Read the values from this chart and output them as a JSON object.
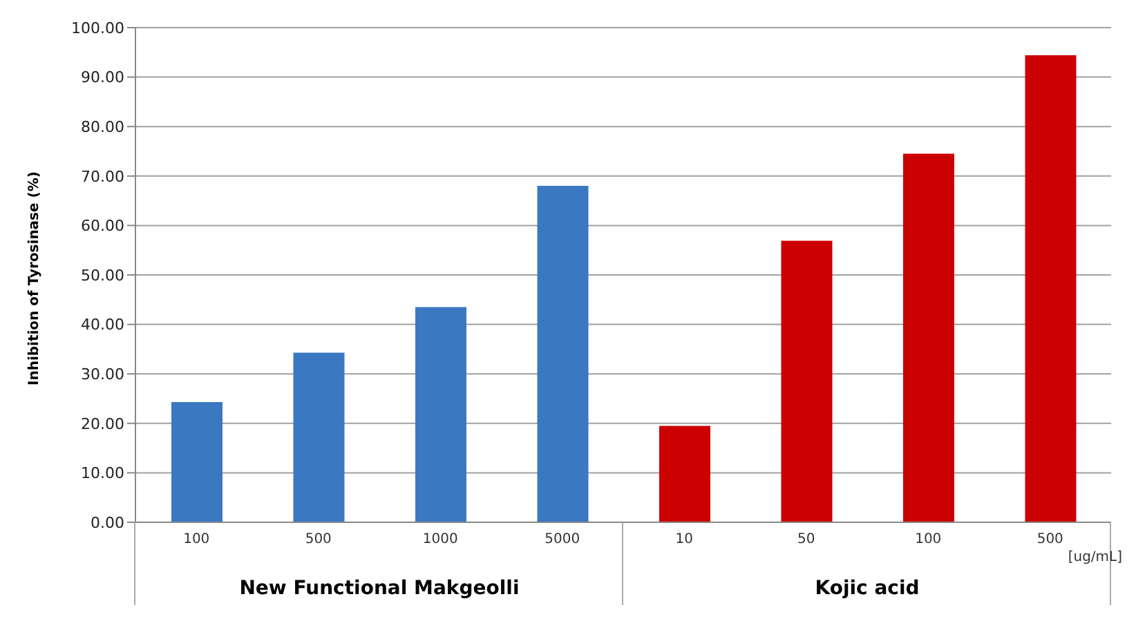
{
  "chart_data": {
    "type": "bar",
    "ylabel": "Inhibition of Tyrosinase (%)",
    "categories": [
      "100",
      "500",
      "1000",
      "5000",
      "10",
      "50",
      "100",
      "500"
    ],
    "values": [
      24.3,
      34.3,
      43.5,
      68.0,
      19.5,
      56.9,
      74.5,
      94.4
    ],
    "colors": [
      "#3a78c2",
      "#3a78c2",
      "#3a78c2",
      "#3a78c2",
      "#cc0000",
      "#cc0000",
      "#cc0000",
      "#cc0000"
    ],
    "ylim": [
      0,
      100
    ],
    "yticks": [
      {
        "value": 0,
        "label": "0.00"
      },
      {
        "value": 10,
        "label": "10.00"
      },
      {
        "value": 20,
        "label": "20.00"
      },
      {
        "value": 30,
        "label": "30.00"
      },
      {
        "value": 40,
        "label": "40.00"
      },
      {
        "value": 50,
        "label": "50.00"
      },
      {
        "value": 60,
        "label": "60.00"
      },
      {
        "value": 70,
        "label": "70.00"
      },
      {
        "value": 80,
        "label": "80.00"
      },
      {
        "value": 90,
        "label": "90.00"
      },
      {
        "value": 100,
        "label": "100.00"
      }
    ],
    "grid": "y",
    "annotations": [
      "New Functional Makgeolli",
      "Kojic acid",
      "[ug/mL]"
    ]
  }
}
